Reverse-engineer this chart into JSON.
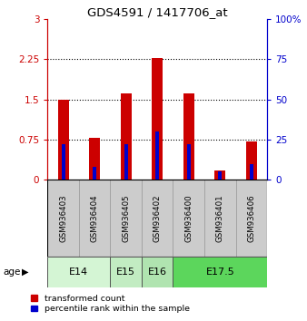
{
  "title": "GDS4591 / 1417706_at",
  "samples": [
    "GSM936403",
    "GSM936404",
    "GSM936405",
    "GSM936402",
    "GSM936400",
    "GSM936401",
    "GSM936406"
  ],
  "transformed_counts": [
    1.5,
    0.78,
    1.62,
    2.27,
    1.62,
    0.18,
    0.72
  ],
  "percentile_ranks": [
    22,
    8,
    22,
    30,
    22,
    5,
    10
  ],
  "left_ylim": [
    0,
    3
  ],
  "right_ylim": [
    0,
    100
  ],
  "left_yticks": [
    0,
    0.75,
    1.5,
    2.25,
    3
  ],
  "right_yticks": [
    0,
    25,
    50,
    75,
    100
  ],
  "left_ytick_labels": [
    "0",
    "0.75",
    "1.5",
    "2.25",
    "3"
  ],
  "right_ytick_labels": [
    "0",
    "25",
    "50",
    "75",
    "100%"
  ],
  "age_groups": [
    {
      "label": "E14",
      "samples": [
        "GSM936403",
        "GSM936404"
      ],
      "color": "#d4f5d4"
    },
    {
      "label": "E15",
      "samples": [
        "GSM936405"
      ],
      "color": "#c2ecc2"
    },
    {
      "label": "E16",
      "samples": [
        "GSM936402"
      ],
      "color": "#b0e4b0"
    },
    {
      "label": "E17.5",
      "samples": [
        "GSM936400",
        "GSM936401",
        "GSM936406"
      ],
      "color": "#5cd65c"
    }
  ],
  "bar_color_red": "#cc0000",
  "bar_color_blue": "#0000cc",
  "red_bar_width": 0.35,
  "blue_bar_width": 0.12,
  "sample_box_color": "#cccccc",
  "left_axis_color": "#cc0000",
  "right_axis_color": "#0000cc",
  "legend_red_label": "transformed count",
  "legend_blue_label": "percentile rank within the sample",
  "age_label": "age"
}
